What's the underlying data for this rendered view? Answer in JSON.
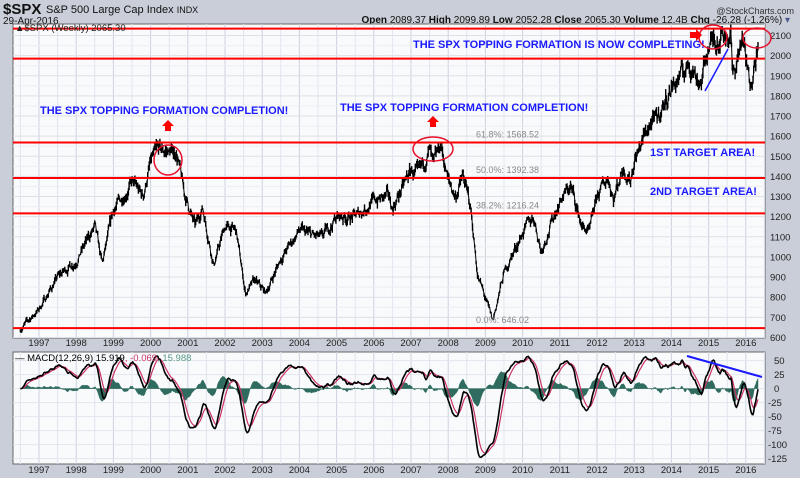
{
  "header": {
    "symbol": "$SPX",
    "name": "S&P 500 Large Cap Index",
    "exchange": "INDX",
    "date": "29-Apr-2016",
    "copyright": "@StockCharts.com",
    "open_label": "Open",
    "open": "2089.37",
    "high_label": "High",
    "high": "2099.89",
    "low_label": "Low",
    "low": "2052.28",
    "close_label": "Close",
    "close": "2065.30",
    "volume_label": "Volume",
    "volume": "12.4B",
    "chg_label": "Chg",
    "chg": "-26.28 (-1.26%)"
  },
  "chart_data": [
    {
      "type": "line",
      "title": "$SPX (Weekly) 2065.30",
      "legend": "top-left",
      "ylim": [
        600,
        2150
      ],
      "yticks": [
        600,
        700,
        800,
        900,
        1000,
        1100,
        1200,
        1300,
        1400,
        1500,
        1600,
        1700,
        1800,
        1900,
        2000,
        2100
      ],
      "xticks": [
        "1997",
        "1998",
        "1999",
        "2000",
        "2001",
        "2002",
        "2003",
        "2004",
        "2005",
        "2006",
        "2007",
        "2008",
        "2009",
        "2010",
        "2011",
        "2012",
        "2013",
        "2014",
        "2015",
        "2016"
      ],
      "x": [
        1996.5,
        1997.0,
        1997.5,
        1997.8,
        1998.0,
        1998.5,
        1998.7,
        1999.0,
        1999.5,
        1999.8,
        2000.0,
        2000.2,
        2000.7,
        2000.9,
        2001.2,
        2001.4,
        2001.7,
        2002.0,
        2002.3,
        2002.55,
        2002.8,
        2003.1,
        2003.5,
        2004.0,
        2004.6,
        2005.0,
        2005.5,
        2006.0,
        2006.4,
        2006.5,
        2007.0,
        2007.2,
        2007.5,
        2007.6,
        2007.8,
        2008.0,
        2008.2,
        2008.4,
        2008.6,
        2008.8,
        2008.9,
        2009.2,
        2009.5,
        2010.0,
        2010.3,
        2010.5,
        2011.0,
        2011.3,
        2011.6,
        2011.8,
        2012.0,
        2012.3,
        2012.45,
        2012.7,
        2012.9,
        2013.0,
        2013.4,
        2013.6,
        2014.0,
        2014.5,
        2014.8,
        2015.0,
        2015.4,
        2015.6,
        2015.65,
        2015.9,
        2016.1,
        2016.33
      ],
      "values": [
        640,
        740,
        900,
        950,
        980,
        1150,
        960,
        1230,
        1370,
        1300,
        1470,
        1530,
        1520,
        1320,
        1150,
        1250,
        960,
        1150,
        1130,
        820,
        880,
        820,
        990,
        1130,
        1090,
        1200,
        1200,
        1280,
        1300,
        1240,
        1430,
        1400,
        1530,
        1440,
        1560,
        1380,
        1300,
        1400,
        1250,
        900,
        850,
        680,
        920,
        1120,
        1200,
        1030,
        1280,
        1350,
        1150,
        1120,
        1300,
        1400,
        1290,
        1450,
        1380,
        1480,
        1650,
        1680,
        1840,
        1960,
        1860,
        2050,
        2120,
        2100,
        1880,
        2090,
        1860,
        2065
      ],
      "levels": [
        {
          "value": 2134,
          "label": ""
        },
        {
          "value": 1985,
          "label": ""
        },
        {
          "value": 1568.52,
          "label": "61.8%: 1568.52"
        },
        {
          "value": 1392.38,
          "label": "50.0%: 1392.38"
        },
        {
          "value": 1216.24,
          "label": "38.2%: 1216.24"
        },
        {
          "value": 646.02,
          "label": "0.0%: 646.02"
        }
      ],
      "annotations": [
        "THE SPX TOPPING FORMATION COMPLETION!",
        "THE SPX TOPPING FORMATION COMPLETION!",
        "THE SPX TOPPING FORMATION IS NOW COMPLETING!",
        "1ST TARGET AREA!",
        "2ND TARGET AREA!"
      ]
    },
    {
      "type": "line",
      "title": "MACD(12,26,9)",
      "macd": "15.919",
      "histogram": "-0.069",
      "signal": "15.988",
      "ylim": [
        -135,
        62
      ],
      "yticks": [
        50,
        25,
        0,
        -25,
        -50,
        -75,
        -100,
        -125
      ],
      "colors": {
        "macd": "#000000",
        "signal": "#cc3366",
        "histogram": "#2f6b5e",
        "trend": "#1a1aff",
        "level": "#ff0000"
      }
    }
  ]
}
